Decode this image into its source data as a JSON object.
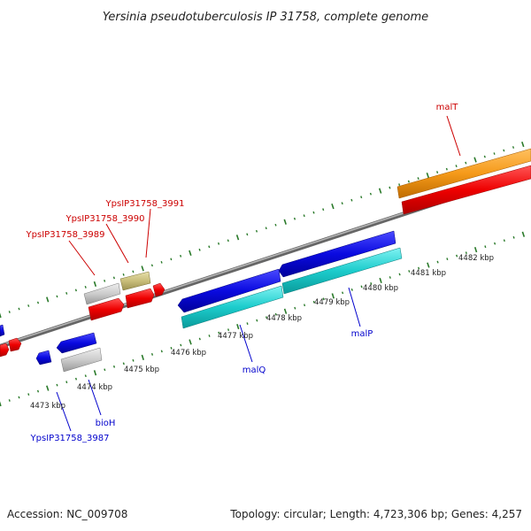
{
  "title": "Yersinia pseudotuberculosis IP 31758, complete genome",
  "footer": {
    "accession": "Accession: NC_009708",
    "summary": "Topology: circular; Length: 4,723,306 bp; Genes: 4,257"
  },
  "colors": {
    "plus_label": "#cc0000",
    "minus_label": "#0000cc",
    "backbone": "#8a8a8a",
    "tick": "#2a7a2a"
  },
  "scale_labels": [
    "4473 kbp",
    "4474 kbp",
    "4475 kbp",
    "4476 kbp",
    "4477 kbp",
    "4478 kbp",
    "4479 kbp",
    "4480 kbp",
    "4481 kbp",
    "4482 kbp"
  ],
  "gene_labels": {
    "malT": "malT",
    "ypsip_3991": "YpsIP31758_3991",
    "ypsip_3990": "YpsIP31758_3990",
    "ypsip_3989": "YpsIP31758_3989",
    "malP": "malP",
    "malQ": "malQ",
    "bioH": "bioH",
    "ypsip_3987": "YpsIP31758_3987"
  }
}
